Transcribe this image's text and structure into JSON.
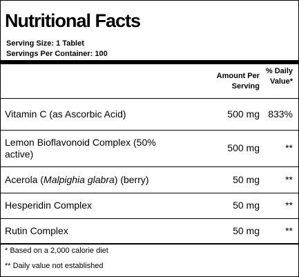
{
  "header": {
    "title": "Nutritional Facts",
    "serving_size": "Serving Size:  1 Tablet",
    "servings_per_container": "Servings Per Container:  100"
  },
  "table": {
    "columns": [
      "Amount Per Serving",
      "% Daily Value*"
    ],
    "rows": [
      {
        "name": [
          "Vitamin C (as Ascorbic Acid)"
        ],
        "amount": "500 mg",
        "dv": "833%"
      },
      {
        "name": [
          "Lemon Bioflavonoid Complex (50% active)"
        ],
        "amount": "500 mg",
        "dv": "**"
      },
      {
        "name": [
          "Acerola (",
          "Malpighia glabra",
          ") (berry)"
        ],
        "amount": "50 mg",
        "dv": "**"
      },
      {
        "name": [
          "Hesperidin Complex"
        ],
        "amount": "50 mg",
        "dv": "**"
      },
      {
        "name": [
          "Rutin Complex"
        ],
        "amount": "50 mg",
        "dv": "**"
      }
    ]
  },
  "footnotes": [
    "* Based on a 2,000 calorie diet",
    "** Daily value not established"
  ]
}
